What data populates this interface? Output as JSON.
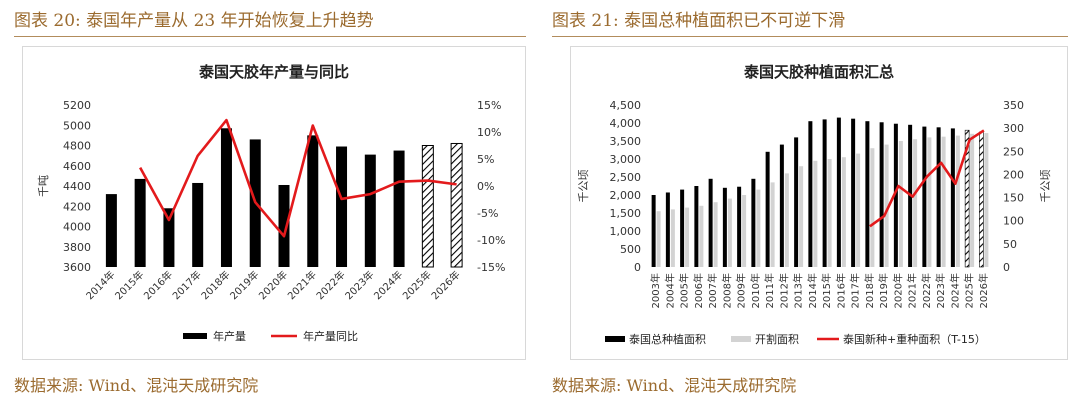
{
  "left": {
    "fig_title": "图表 20:  泰国年产量从 23 年开始恢复上升趋势",
    "source": "数据来源:  Wind、混沌天成研究院"
  },
  "right": {
    "fig_title": "图表 21:  泰国总种植面积已不可逆下滑",
    "source": "数据来源:  Wind、混沌天成研究院"
  },
  "colors": {
    "header_text": "#9b6b2f",
    "bar": "#000000",
    "bar_light": "#d3d3d3",
    "line": "#e31a1c",
    "rule": "#b28c5c"
  },
  "chart_data": [
    {
      "type": "bar",
      "title": "泰国天胶年产量与同比",
      "categories": [
        "2014年",
        "2015年",
        "2016年",
        "2017年",
        "2018年",
        "2019年",
        "2020年",
        "2021年",
        "2022年",
        "2023年",
        "2024年",
        "2025年",
        "2026年"
      ],
      "series": [
        {
          "name": "年产量",
          "type": "bar",
          "axis": "left",
          "values": [
            4320,
            4470,
            4180,
            4430,
            4970,
            4860,
            4410,
            4900,
            4790,
            4710,
            4750,
            4800,
            4820
          ],
          "hatched_categories": [
            "2025年",
            "2026年"
          ]
        },
        {
          "name": "年产量同比",
          "type": "line",
          "axis": "right",
          "values": [
            null,
            3.4,
            -6.3,
            5.6,
            12.2,
            -3.0,
            -9.3,
            11.2,
            -2.4,
            -1.5,
            0.8,
            1.0,
            0.3
          ]
        }
      ],
      "ylabel": "千吨",
      "ylim": [
        3600,
        5200
      ],
      "yticks": [
        "3600",
        "3800",
        "4000",
        "4200",
        "4400",
        "4600",
        "4800",
        "5000",
        "5200"
      ],
      "y2lim": [
        -15,
        15
      ],
      "y2ticks": [
        "-15%",
        "-10%",
        "-5%",
        "0%",
        "5%",
        "10%",
        "15%"
      ],
      "legend": [
        "年产量",
        "年产量同比"
      ],
      "legend_position": "bottom"
    },
    {
      "type": "bar",
      "title": "泰国天胶种植面积汇总",
      "categories": [
        "2003年",
        "2004年",
        "2005年",
        "2006年",
        "2007年",
        "2008年",
        "2009年",
        "2010年",
        "2011年",
        "2012年",
        "2013年",
        "2014年",
        "2015年",
        "2016年",
        "2017年",
        "2018年",
        "2019年",
        "2020年",
        "2021年",
        "2022年",
        "2023年",
        "2024年",
        "2025年",
        "2026年"
      ],
      "series": [
        {
          "name": "泰国总种植面积",
          "type": "bar",
          "axis": "left",
          "values": [
            2000,
            2070,
            2150,
            2250,
            2450,
            2200,
            2230,
            2450,
            3200,
            3400,
            3600,
            4050,
            4100,
            4150,
            4120,
            4050,
            4020,
            3980,
            3950,
            3900,
            3880,
            3850,
            3800,
            3750
          ],
          "hatched_categories": [
            "2025年",
            "2026年"
          ]
        },
        {
          "name": "开割面积",
          "type": "bar",
          "axis": "left",
          "values": [
            1550,
            1600,
            1650,
            1700,
            1800,
            1900,
            2000,
            2150,
            2350,
            2600,
            2800,
            2950,
            3000,
            3050,
            3150,
            3300,
            3400,
            3500,
            3550,
            3600,
            3620,
            3650,
            3700,
            3720
          ]
        },
        {
          "name": "泰国新种+重种面积（T-15）",
          "type": "line",
          "axis": "right",
          "values": [
            null,
            null,
            null,
            null,
            null,
            null,
            null,
            null,
            null,
            null,
            null,
            null,
            null,
            null,
            null,
            88,
            110,
            175,
            152,
            195,
            225,
            180,
            275,
            295
          ]
        }
      ],
      "ylabel": "千公顷",
      "ylim": [
        0,
        4500
      ],
      "yticks": [
        "0",
        "500",
        "1,000",
        "1,500",
        "2,000",
        "2,500",
        "3,000",
        "3,500",
        "4,000",
        "4,500"
      ],
      "y2label": "千公顷",
      "y2lim": [
        0,
        350
      ],
      "y2ticks": [
        "0",
        "50",
        "100",
        "150",
        "200",
        "250",
        "300",
        "350"
      ],
      "legend": [
        "泰国总种植面积",
        "开割面积",
        "泰国新种+重种面积（T-15）"
      ],
      "legend_position": "bottom"
    }
  ]
}
